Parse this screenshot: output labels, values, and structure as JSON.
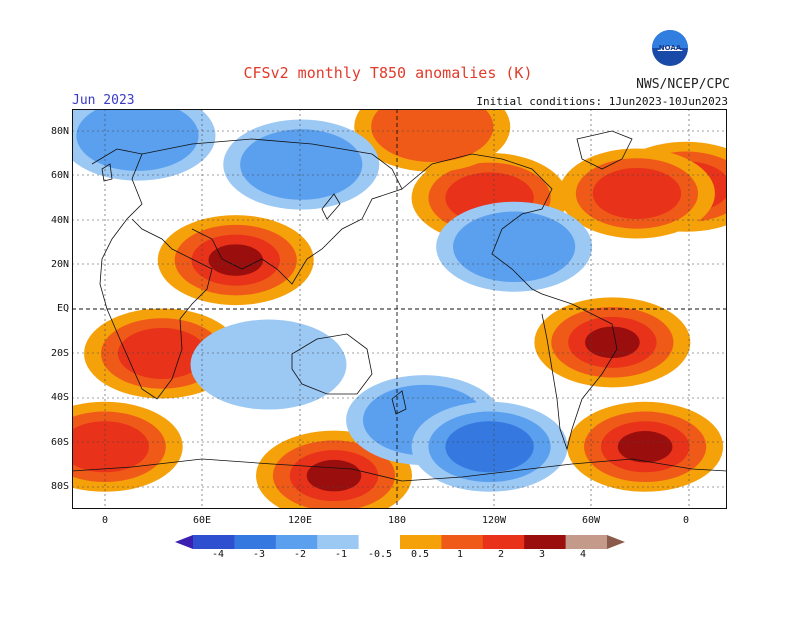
{
  "title": "CFSv2 monthly T850 anomalies (K)",
  "month": "Jun 2023",
  "agency": "NWS/NCEP/CPC",
  "initial_conditions": "Initial conditions: 1Jun2023-10Jun2023",
  "logo_text": "NOAA",
  "lat_ticks": [
    "80N",
    "60N",
    "40N",
    "20N",
    "EQ",
    "20S",
    "40S",
    "60S",
    "80S"
  ],
  "lon_ticks": [
    "0",
    "60E",
    "120E",
    "180",
    "120W",
    "60W",
    "0"
  ],
  "colorbar": {
    "labels": [
      "-4",
      "-3",
      "-2",
      "-1",
      "-0.5",
      "0.5",
      "1",
      "2",
      "3",
      "4"
    ],
    "colors": [
      "#3a1fb0",
      "#2d4fd0",
      "#3578e0",
      "#5aa0ee",
      "#9cc8f4",
      "#ffffff",
      "#f5a10a",
      "#f05a18",
      "#e8321a",
      "#9a0e0e",
      "#c49a8a",
      "#8a5a4a"
    ]
  },
  "chart_data": {
    "type": "heatmap",
    "title": "CFSv2 monthly T850 anomalies (K)",
    "subtitle": "Jun 2023",
    "units": "K",
    "xlim": [
      -20,
      380
    ],
    "ylim": [
      -90,
      90
    ],
    "levels": [
      -4,
      -3,
      -2,
      -1,
      -0.5,
      0.5,
      1,
      2,
      3,
      4
    ],
    "warm_regions": [
      {
        "lon": 355,
        "lat": 55,
        "value": 3
      },
      {
        "lon": 80,
        "lat": 22,
        "value": 3
      },
      {
        "lon": 310,
        "lat": -15,
        "value": 3.5
      },
      {
        "lon": 330,
        "lat": -62,
        "value": 3.5
      },
      {
        "lon": 140,
        "lat": -75,
        "value": 3
      },
      {
        "lon": 235,
        "lat": 50,
        "value": 2.5
      },
      {
        "lon": 325,
        "lat": 52,
        "value": 2.5
      },
      {
        "lon": 35,
        "lat": -20,
        "value": 2
      },
      {
        "lon": 0,
        "lat": -62,
        "value": 2.5
      },
      {
        "lon": 200,
        "lat": 82,
        "value": 1.5
      }
    ],
    "cold_regions": [
      {
        "lon": 20,
        "lat": 78,
        "value": -1.5
      },
      {
        "lon": 120,
        "lat": 65,
        "value": -1
      },
      {
        "lon": 195,
        "lat": -50,
        "value": -1.5
      },
      {
        "lon": 235,
        "lat": -62,
        "value": -2
      },
      {
        "lon": 250,
        "lat": 28,
        "value": -1
      },
      {
        "lon": 100,
        "lat": -25,
        "value": -0.5
      }
    ]
  }
}
